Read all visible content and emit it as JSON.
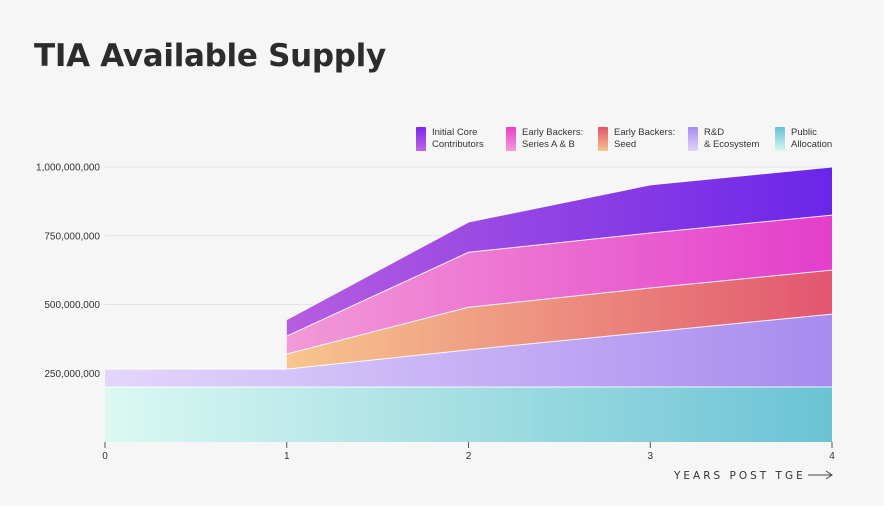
{
  "title": "TIA Available Supply",
  "colors": {
    "background": "#f6f6f6",
    "core_contributors": [
      "#b65de0",
      "#6a26e8"
    ],
    "series_ab": [
      "#f29ad7",
      "#e43ecb"
    ],
    "seed": [
      "#f7c68e",
      "#e2566f"
    ],
    "rnd": [
      "#e3d6fb",
      "#a88bef"
    ],
    "public": [
      "#dcf9f2",
      "#6ac3d4"
    ]
  },
  "legend": [
    {
      "label": "Initial Core\nContributors",
      "swatch": [
        "#7a2be8",
        "#c163e3"
      ],
      "icon": "swatch-core-contributors"
    },
    {
      "label": "Early Backers:\nSeries A & B",
      "swatch": [
        "#e63fc9",
        "#f59bd8"
      ],
      "icon": "swatch-series-ab"
    },
    {
      "label": "Early Backers:\nSeed",
      "swatch": [
        "#e05568",
        "#f7c38e"
      ],
      "icon": "swatch-seed"
    },
    {
      "label": "R&D\n& Ecosystem",
      "swatch": [
        "#a98af0",
        "#e1d5fb"
      ],
      "icon": "swatch-rnd"
    },
    {
      "label": "Public\nAllocation",
      "swatch": [
        "#67c0d3",
        "#d8f7f0"
      ],
      "icon": "swatch-public"
    }
  ],
  "chart_data": {
    "type": "area",
    "stacked": true,
    "title": "TIA Available Supply",
    "xlabel": "YEARS POST TGE",
    "ylabel": "",
    "x_ticks": [
      0,
      1,
      2,
      3,
      4
    ],
    "y_ticks": [
      250000000,
      500000000,
      750000000,
      1000000000
    ],
    "y_tick_labels": [
      "250,000,000",
      "500,000,000",
      "750,000,000",
      "1,000,000,000"
    ],
    "xlim": [
      0,
      4
    ],
    "ylim": [
      0,
      1000000000
    ],
    "grid": "horizontal",
    "legend_position": "top-right",
    "series": [
      {
        "name": "Public Allocation",
        "key": "public",
        "x": [
          0,
          4
        ],
        "values": [
          200000000,
          200000000
        ]
      },
      {
        "name": "R&D & Ecosystem",
        "key": "rnd",
        "x": [
          0,
          1,
          2,
          3,
          4
        ],
        "values": [
          65000000,
          65000000,
          135000000,
          200000000,
          265000000
        ]
      },
      {
        "name": "Early Backers: Seed",
        "key": "seed",
        "x": [
          1,
          2,
          3,
          4
        ],
        "values": [
          55000000,
          155000000,
          160000000,
          160000000
        ]
      },
      {
        "name": "Early Backers: Series A & B",
        "key": "series_ab",
        "x": [
          1,
          2,
          3,
          4
        ],
        "values": [
          65000000,
          200000000,
          200000000,
          200000000
        ]
      },
      {
        "name": "Initial Core Contributors",
        "key": "core_contributors",
        "x": [
          1,
          2,
          3,
          4
        ],
        "values": [
          60000000,
          110000000,
          175000000,
          175000000
        ]
      }
    ]
  }
}
